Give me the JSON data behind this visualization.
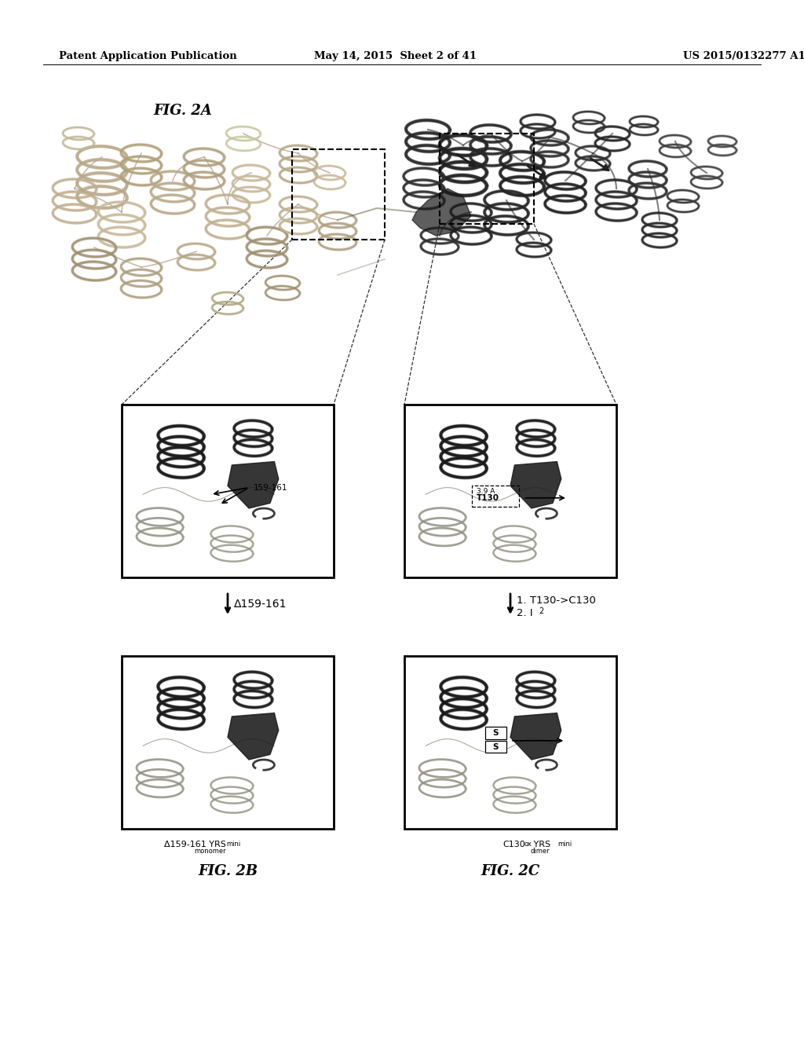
{
  "header_left": "Patent Application Publication",
  "header_center": "May 14, 2015  Sheet 2 of 41",
  "header_right": "US 2015/0132277 A1",
  "fig_label_A": "FIG. 2A",
  "fig_label_B": "FIG. 2B",
  "fig_label_C": "FIG. 2C",
  "label_delta": "Δ159-161",
  "label_B_caption": "Δ159-161 YRS",
  "label_B_super": "mini",
  "label_B_sub": "monomer",
  "label_C_pre": "C130",
  "label_C_super1": "ox",
  "label_C_mid": " YRS",
  "label_C_super2": "mini",
  "label_C_sub": "dimer",
  "arrow_C_label_1": "1. T130->C130",
  "arrow_C_label_2": "2. I",
  "arrow_C_label_2_sub": "2",
  "box_label_159a": "159-161",
  "box_label_39": "3.9 A",
  "box_label_T130": "T130",
  "bg_color": "#ffffff",
  "text_color": "#000000",
  "header_fontsize": 9.5,
  "fig_label_fontsize": 13,
  "caption_fontsize": 8,
  "sup_fontsize": 6
}
